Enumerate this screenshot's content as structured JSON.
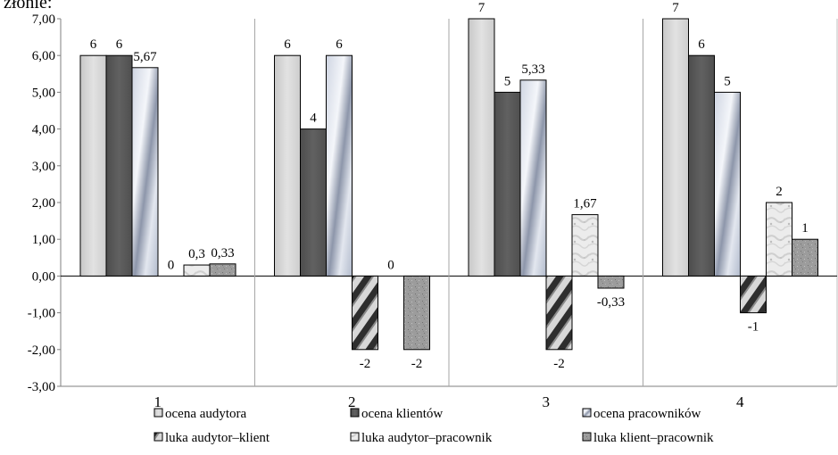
{
  "chart_data": {
    "type": "bar",
    "top_text": "złonie:",
    "categories": [
      "1",
      "2",
      "3",
      "4"
    ],
    "ylim": [
      -3,
      7
    ],
    "yticks": [
      "7,00",
      "6,00",
      "5,00",
      "4,00",
      "3,00",
      "2,00",
      "1,00",
      "0,00",
      "-1,00",
      "-2,00",
      "-3,00"
    ],
    "grid": "vertical category separators",
    "legend_position": "bottom",
    "series": [
      {
        "name": "ocena audytora",
        "values": [
          6,
          6,
          7,
          7
        ],
        "labels": [
          "6",
          "6",
          "7",
          "7"
        ],
        "color": "#d9d9d9",
        "pattern": "light"
      },
      {
        "name": "ocena klientów",
        "values": [
          6,
          4,
          5,
          6
        ],
        "labels": [
          "6",
          "4",
          "5",
          "6"
        ],
        "color": "#595959",
        "pattern": "dark"
      },
      {
        "name": "ocena pracowników",
        "values": [
          5.67,
          6,
          5.33,
          5
        ],
        "labels": [
          "5,67",
          "6",
          "5,33",
          "5"
        ],
        "color": "#a6aec0",
        "pattern": "metal"
      },
      {
        "name": "luka audytor–klient",
        "values": [
          0,
          -2,
          -2,
          -1
        ],
        "labels": [
          "0",
          "-2",
          "-2",
          "-1"
        ],
        "color": "#808080",
        "pattern": "diagonal"
      },
      {
        "name": "luka audytor–pracownik",
        "values": [
          0.3,
          0,
          1.67,
          2
        ],
        "labels": [
          "0,3",
          "0",
          "1,67",
          "2"
        ],
        "color": "#e6e6e6",
        "pattern": "marble"
      },
      {
        "name": "luka klient–pracownik",
        "values": [
          0.33,
          -2,
          -0.33,
          1
        ],
        "labels": [
          "0,33",
          "-2",
          "-0,33",
          "1"
        ],
        "color": "#9a9a9a",
        "pattern": "granite"
      }
    ]
  }
}
